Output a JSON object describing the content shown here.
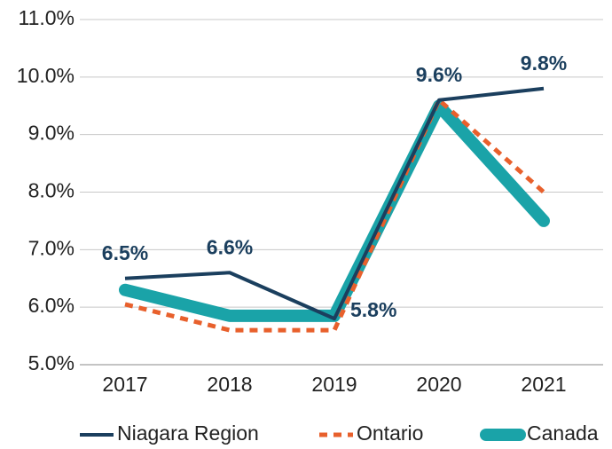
{
  "chart_data": {
    "type": "line",
    "categories": [
      "2017",
      "2018",
      "2019",
      "2020",
      "2021"
    ],
    "series": [
      {
        "name": "Niagara Region",
        "color": "#1b3f5e",
        "values": [
          6.5,
          6.6,
          5.8,
          9.6,
          9.8
        ],
        "value_labels": [
          "6.5%",
          "6.6%",
          "5.8%",
          "9.6%",
          "9.8%"
        ]
      },
      {
        "name": "Ontario",
        "color": "#e8602c",
        "values": [
          6.05,
          5.6,
          5.6,
          9.6,
          8.0
        ]
      },
      {
        "name": "Canada",
        "color": "#1aa3a8",
        "values": [
          6.3,
          5.85,
          5.85,
          9.5,
          7.5
        ]
      }
    ],
    "ylim": [
      5,
      11
    ],
    "yticks": [
      {
        "value": 5,
        "label": "5.0%"
      },
      {
        "value": 6,
        "label": "6.0%"
      },
      {
        "value": 7,
        "label": "7.0%"
      },
      {
        "value": 8,
        "label": "8.0%"
      },
      {
        "value": 9,
        "label": "9.0%"
      },
      {
        "value": 10,
        "label": "10.0%"
      },
      {
        "value": 11,
        "label": "11.0%"
      }
    ],
    "grid": true
  }
}
